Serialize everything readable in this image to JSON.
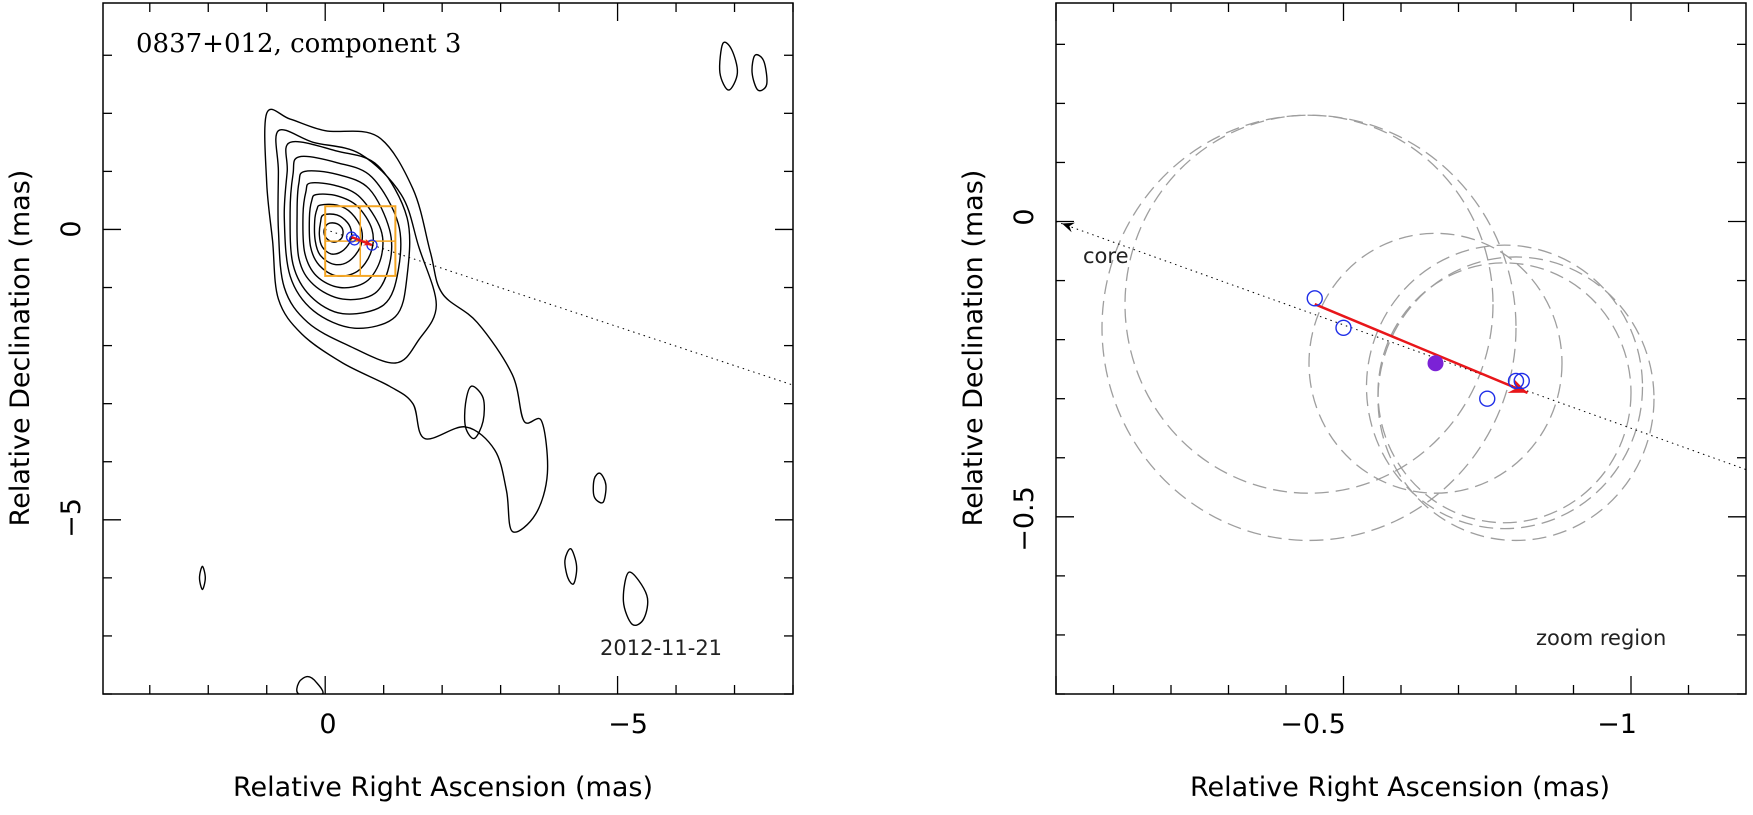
{
  "chart_data": [
    {
      "type": "contour",
      "title": "0837+012, component 3",
      "date": "2012-11-21",
      "xlabel": "Relative Right Ascension (mas)",
      "ylabel": "Relative Declination (mas)",
      "xlim": [
        3.8,
        -8.0
      ],
      "ylim": [
        -8.0,
        3.9
      ],
      "xticks": [
        0,
        -5
      ],
      "yticks": [
        0,
        -5
      ],
      "x_ticklabels": [
        "0",
        "−5"
      ],
      "y_ticklabels": [
        "0",
        "−5"
      ],
      "contours": [
        {
          "name": "c1",
          "points": [
            [
              1.0,
              2.0
            ],
            [
              0.6,
              1.9
            ],
            [
              0.0,
              1.7
            ],
            [
              -0.9,
              1.6
            ],
            [
              -1.5,
              0.7
            ],
            [
              -1.8,
              -0.4
            ],
            [
              -2.0,
              -1.1
            ],
            [
              -2.6,
              -1.6
            ],
            [
              -3.2,
              -2.5
            ],
            [
              -3.4,
              -3.3
            ],
            [
              -3.7,
              -3.3
            ],
            [
              -3.8,
              -4.2
            ],
            [
              -3.6,
              -4.9
            ],
            [
              -3.2,
              -5.2
            ],
            [
              -3.1,
              -4.5
            ],
            [
              -2.9,
              -3.8
            ],
            [
              -2.4,
              -3.4
            ],
            [
              -1.7,
              -3.6
            ],
            [
              -1.5,
              -3.0
            ],
            [
              -1.1,
              -2.7
            ],
            [
              -0.3,
              -2.3
            ],
            [
              0.4,
              -1.8
            ],
            [
              0.8,
              -1.2
            ],
            [
              0.9,
              -0.2
            ],
            [
              1.0,
              0.8
            ]
          ]
        },
        {
          "name": "c2",
          "points": [
            [
              0.8,
              1.7
            ],
            [
              0.2,
              1.5
            ],
            [
              -0.6,
              1.3
            ],
            [
              -1.3,
              0.6
            ],
            [
              -1.6,
              -0.3
            ],
            [
              -1.9,
              -1.3
            ],
            [
              -1.6,
              -1.9
            ],
            [
              -1.2,
              -2.3
            ],
            [
              -0.4,
              -2.0
            ],
            [
              0.3,
              -1.6
            ],
            [
              0.7,
              -1.0
            ],
            [
              0.8,
              0.0
            ],
            [
              0.8,
              1.0
            ]
          ]
        },
        {
          "name": "c3",
          "points": [
            [
              0.6,
              1.5
            ],
            [
              -0.2,
              1.35
            ],
            [
              -0.9,
              1.1
            ],
            [
              -1.4,
              0.2
            ],
            [
              -1.4,
              -0.8
            ],
            [
              -1.2,
              -1.5
            ],
            [
              -0.5,
              -1.7
            ],
            [
              0.2,
              -1.4
            ],
            [
              0.6,
              -0.8
            ],
            [
              0.7,
              0.2
            ],
            [
              0.65,
              1.0
            ]
          ]
        },
        {
          "name": "c4",
          "points": [
            [
              0.45,
              1.25
            ],
            [
              -0.2,
              1.15
            ],
            [
              -0.8,
              0.9
            ],
            [
              -1.25,
              0.1
            ],
            [
              -1.25,
              -0.7
            ],
            [
              -1.0,
              -1.3
            ],
            [
              -0.3,
              -1.45
            ],
            [
              0.25,
              -1.15
            ],
            [
              0.55,
              -0.6
            ],
            [
              0.6,
              0.3
            ],
            [
              0.55,
              0.95
            ]
          ]
        },
        {
          "name": "c5",
          "points": [
            [
              0.35,
              1.0
            ],
            [
              -0.2,
              0.95
            ],
            [
              -0.75,
              0.7
            ],
            [
              -1.1,
              0.0
            ],
            [
              -1.1,
              -0.6
            ],
            [
              -0.85,
              -1.1
            ],
            [
              -0.3,
              -1.2
            ],
            [
              0.2,
              -0.95
            ],
            [
              0.45,
              -0.5
            ],
            [
              0.48,
              0.3
            ],
            [
              0.45,
              0.8
            ]
          ]
        },
        {
          "name": "c6",
          "points": [
            [
              0.25,
              0.8
            ],
            [
              -0.2,
              0.75
            ],
            [
              -0.6,
              0.55
            ],
            [
              -0.95,
              0.0
            ],
            [
              -0.95,
              -0.5
            ],
            [
              -0.7,
              -0.9
            ],
            [
              -0.25,
              -1.0
            ],
            [
              0.15,
              -0.8
            ],
            [
              0.35,
              -0.4
            ],
            [
              0.38,
              0.25
            ],
            [
              0.33,
              0.65
            ]
          ]
        },
        {
          "name": "c7",
          "points": [
            [
              0.15,
              0.6
            ],
            [
              -0.2,
              0.58
            ],
            [
              -0.55,
              0.4
            ],
            [
              -0.8,
              0.0
            ],
            [
              -0.78,
              -0.4
            ],
            [
              -0.55,
              -0.72
            ],
            [
              -0.2,
              -0.8
            ],
            [
              0.1,
              -0.62
            ],
            [
              0.25,
              -0.3
            ],
            [
              0.27,
              0.2
            ],
            [
              0.23,
              0.5
            ]
          ]
        },
        {
          "name": "c8",
          "points": [
            [
              0.08,
              0.42
            ],
            [
              -0.2,
              0.42
            ],
            [
              -0.45,
              0.28
            ],
            [
              -0.62,
              0.0
            ],
            [
              -0.6,
              -0.3
            ],
            [
              -0.4,
              -0.55
            ],
            [
              -0.15,
              -0.6
            ],
            [
              0.08,
              -0.45
            ],
            [
              0.17,
              -0.2
            ],
            [
              0.18,
              0.15
            ],
            [
              0.14,
              0.35
            ]
          ]
        },
        {
          "name": "c9",
          "points": [
            [
              0.03,
              0.25
            ],
            [
              -0.2,
              0.25
            ],
            [
              -0.38,
              0.12
            ],
            [
              -0.45,
              -0.05
            ],
            [
              -0.42,
              -0.22
            ],
            [
              -0.28,
              -0.38
            ],
            [
              -0.1,
              -0.42
            ],
            [
              0.05,
              -0.3
            ],
            [
              0.1,
              -0.1
            ],
            [
              0.08,
              0.12
            ]
          ]
        },
        {
          "name": "c10",
          "points": [
            [
              -0.05,
              0.1
            ],
            [
              -0.2,
              0.1
            ],
            [
              -0.3,
              0.0
            ],
            [
              -0.28,
              -0.15
            ],
            [
              -0.15,
              -0.22
            ],
            [
              -0.02,
              -0.15
            ],
            [
              0.02,
              -0.02
            ]
          ]
        },
        {
          "name": "island-a",
          "points": [
            [
              -2.5,
              -2.7
            ],
            [
              -2.7,
              -2.9
            ],
            [
              -2.7,
              -3.3
            ],
            [
              -2.55,
              -3.6
            ],
            [
              -2.4,
              -3.4
            ],
            [
              -2.4,
              -3.0
            ]
          ]
        },
        {
          "name": "island-b",
          "points": [
            [
              -4.7,
              -4.2
            ],
            [
              -4.8,
              -4.4
            ],
            [
              -4.75,
              -4.7
            ],
            [
              -4.6,
              -4.6
            ],
            [
              -4.6,
              -4.3
            ]
          ]
        },
        {
          "name": "island-c",
          "points": [
            [
              -4.2,
              -5.5
            ],
            [
              -4.3,
              -5.8
            ],
            [
              -4.25,
              -6.1
            ],
            [
              -4.15,
              -6.0
            ],
            [
              -4.1,
              -5.7
            ]
          ]
        },
        {
          "name": "island-d",
          "points": [
            [
              -5.2,
              -5.9
            ],
            [
              -5.5,
              -6.3
            ],
            [
              -5.45,
              -6.7
            ],
            [
              -5.25,
              -6.8
            ],
            [
              -5.1,
              -6.4
            ]
          ]
        },
        {
          "name": "island-e",
          "points": [
            [
              -6.8,
              3.2
            ],
            [
              -6.95,
              3.1
            ],
            [
              -7.05,
              2.7
            ],
            [
              -6.9,
              2.4
            ],
            [
              -6.75,
              2.7
            ]
          ]
        },
        {
          "name": "island-f",
          "points": [
            [
              -7.35,
              3.0
            ],
            [
              -7.5,
              2.9
            ],
            [
              -7.55,
              2.5
            ],
            [
              -7.4,
              2.4
            ],
            [
              -7.3,
              2.7
            ]
          ]
        },
        {
          "name": "island-g",
          "points": [
            [
              2.1,
              -5.8
            ],
            [
              2.15,
              -6.0
            ],
            [
              2.1,
              -6.2
            ],
            [
              2.05,
              -6.0
            ]
          ]
        },
        {
          "name": "island-h",
          "points": [
            [
              0.3,
              -7.7
            ],
            [
              0.15,
              -7.8
            ],
            [
              0.05,
              -8.0
            ],
            [
              0.45,
              -8.0
            ],
            [
              0.45,
              -7.8
            ]
          ]
        }
      ],
      "zoom_box": {
        "x": [
          0.0,
          -1.2
        ],
        "y": [
          0.4,
          -0.8
        ],
        "color": "#f5a623"
      },
      "dotted_line": {
        "x": [
          0.0,
          -8.0
        ],
        "y": [
          0.0,
          -2.68
        ]
      },
      "jet_arrow": {
        "x": [
          -0.45,
          -0.8
        ],
        "y": [
          -0.13,
          -0.27
        ]
      },
      "component_points": {
        "x": [
          -0.45,
          -0.5,
          -0.8
        ],
        "y": [
          -0.13,
          -0.18,
          -0.27
        ]
      }
    },
    {
      "type": "scatter",
      "title": "",
      "xlabel": "Relative Right Ascension (mas)",
      "ylabel": "Relative Declination (mas)",
      "xlim": [
        -0.0,
        -1.2
      ],
      "ylim": [
        -0.8,
        0.37
      ],
      "xticks": [
        -0.5,
        -1
      ],
      "yticks": [
        0,
        -0.5
      ],
      "x_ticklabels": [
        "−0.5",
        "−1"
      ],
      "y_ticklabels": [
        "0",
        "−0.5"
      ],
      "annotations": [
        "core",
        "zoom region"
      ],
      "open_circles": {
        "x": [
          -0.45,
          -0.5,
          -0.75,
          -0.8,
          -0.81
        ],
        "y": [
          -0.13,
          -0.18,
          -0.3,
          -0.27,
          -0.27
        ]
      },
      "filled_point": {
        "x": -0.66,
        "y": -0.24
      },
      "fit_arrow": {
        "x": [
          -0.45,
          -0.82
        ],
        "y": [
          -0.14,
          -0.29
        ]
      },
      "dotted_line": {
        "x": [
          -0.0,
          -1.2
        ],
        "y": [
          0.0,
          -0.42
        ]
      },
      "dashed_circles": [
        {
          "cx": -0.44,
          "cy": -0.14,
          "r": 0.32
        },
        {
          "cx": -0.44,
          "cy": -0.18,
          "r": 0.36
        },
        {
          "cx": -0.66,
          "cy": -0.24,
          "r": 0.22
        },
        {
          "cx": -0.78,
          "cy": -0.28,
          "r": 0.24
        },
        {
          "cx": -0.78,
          "cy": -0.29,
          "r": 0.22
        },
        {
          "cx": -0.8,
          "cy": -0.3,
          "r": 0.24
        }
      ]
    }
  ],
  "colors": {
    "contour": "#000000",
    "zoom_box": "#f5a623",
    "arrow": "#e8161a",
    "open_circle": "#1f2ee8",
    "filled_point": "#7b22d6",
    "dashed_circle": "#9e9e9e"
  }
}
